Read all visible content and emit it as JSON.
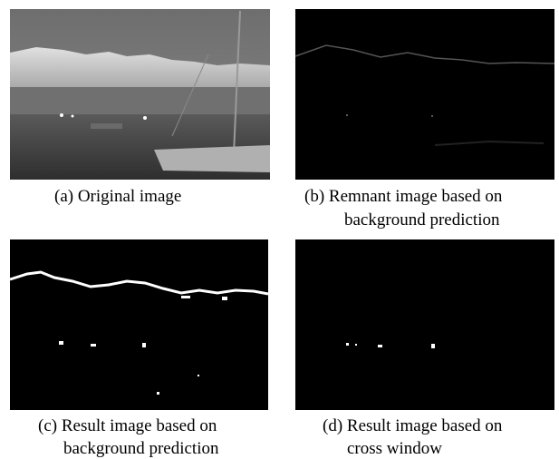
{
  "panels": [
    {
      "caption": [
        "(a) Original image"
      ]
    },
    {
      "caption": [
        "(b) Remnant image based on",
        "background prediction"
      ]
    },
    {
      "caption": [
        "(c) Result image based on",
        "background prediction"
      ]
    },
    {
      "caption": [
        "(d) Result image based on",
        "cross window"
      ]
    }
  ]
}
